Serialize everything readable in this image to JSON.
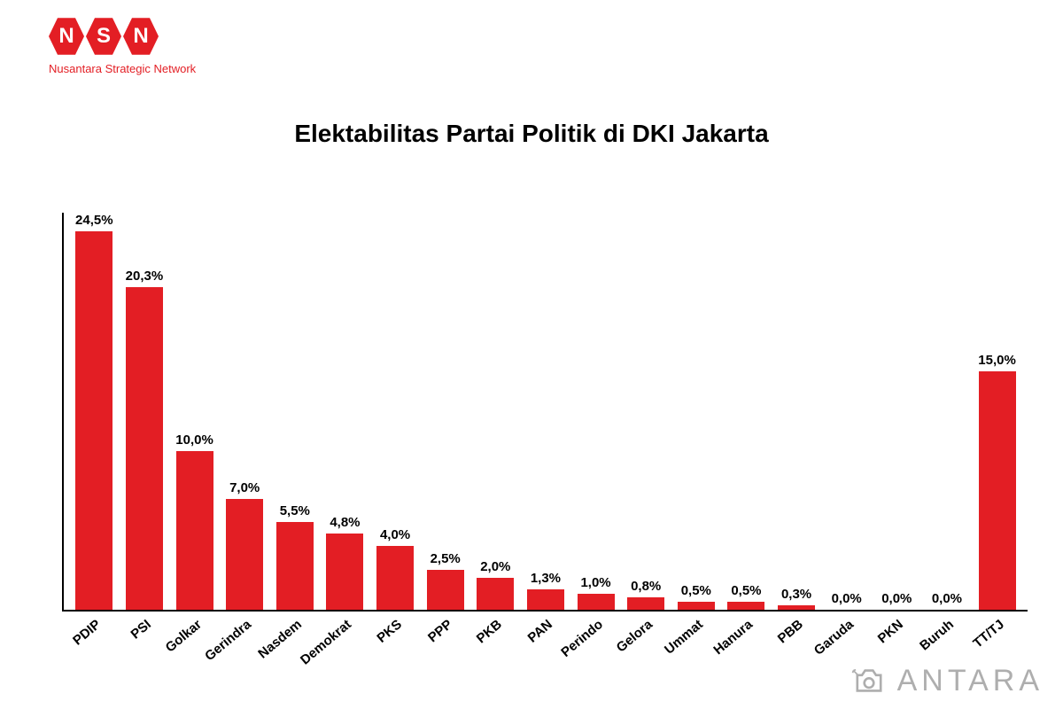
{
  "logo": {
    "letters": [
      "N",
      "S",
      "N"
    ],
    "tagline": "Nusantara Strategic Network",
    "hex_bg": "#e31e24",
    "hex_fg": "#ffffff",
    "tagline_color": "#e31e24"
  },
  "chart": {
    "type": "bar",
    "title": "Elektabilitas Partai Politik di DKI Jakarta",
    "title_fontsize": 28,
    "title_color": "#000000",
    "background_color": "#ffffff",
    "axis_color": "#000000",
    "bar_color": "#e31e24",
    "bar_width_pct": 74,
    "ylim": [
      0,
      25
    ],
    "value_label_fontsize": 15,
    "value_label_color": "#000000",
    "category_label_fontsize": 15,
    "category_label_rotation_deg": -40,
    "categories": [
      "PDIP",
      "PSI",
      "Golkar",
      "Gerindra",
      "Nasdem",
      "Demokrat",
      "PKS",
      "PPP",
      "PKB",
      "PAN",
      "Perindo",
      "Gelora",
      "Ummat",
      "Hanura",
      "PBB",
      "Garuda",
      "PKN",
      "Buruh",
      "TT/TJ"
    ],
    "values": [
      24.5,
      20.3,
      10.0,
      7.0,
      5.5,
      4.8,
      4.0,
      2.5,
      2.0,
      1.3,
      1.0,
      0.8,
      0.5,
      0.5,
      0.3,
      0.0,
      0.0,
      0.0,
      15.0
    ],
    "value_labels": [
      "24,5%",
      "20,3%",
      "10,0%",
      "7,0%",
      "5,5%",
      "4,8%",
      "4,0%",
      "2,5%",
      "2,0%",
      "1,3%",
      "1,0%",
      "0,8%",
      "0,5%",
      "0,5%",
      "0,3%",
      "0,0%",
      "0,0%",
      "0,0%",
      "15,0%"
    ]
  },
  "watermark": {
    "text": "ANTARA",
    "text_color": "#7a7a7a",
    "icon_color": "#7a7a7a",
    "fontsize": 34,
    "letter_spacing": 5
  }
}
